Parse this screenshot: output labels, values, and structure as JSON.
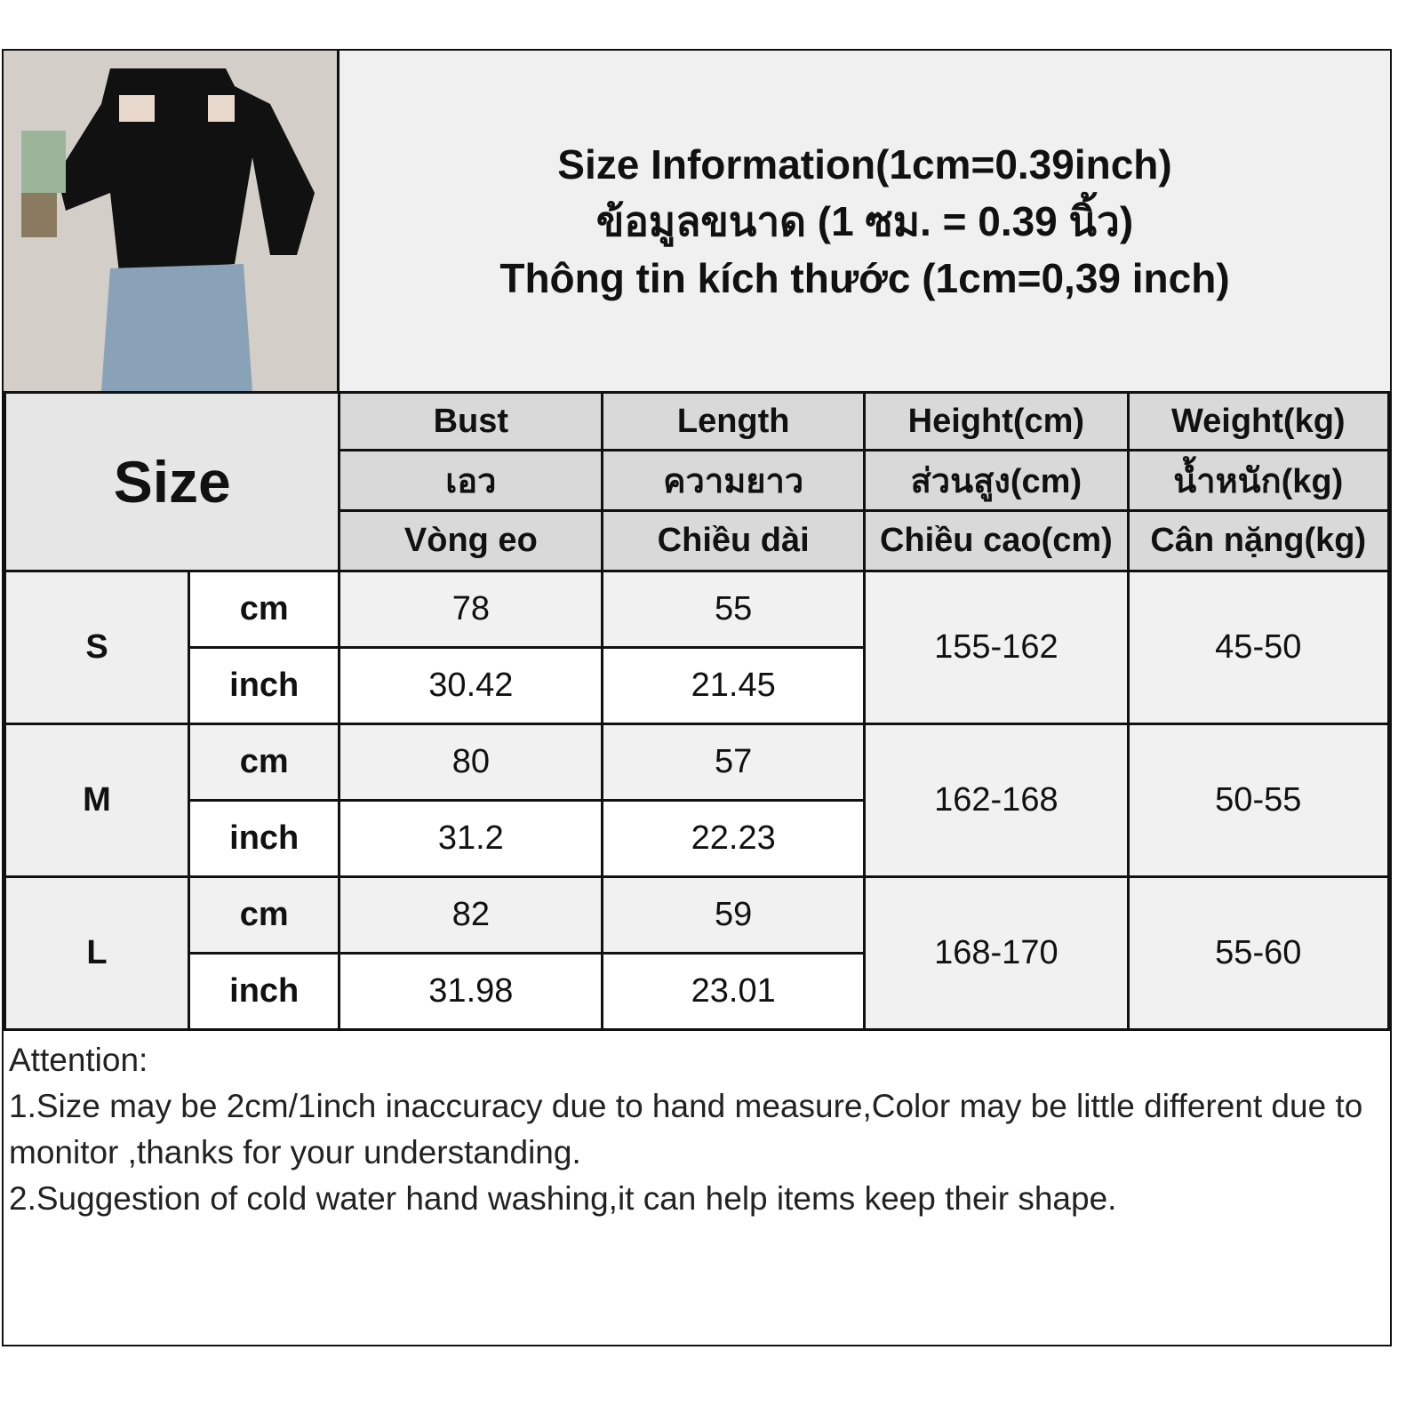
{
  "title_lines": [
    "Size Information(1cm=0.39inch)",
    "ข้อมูลขนาด (1 ซม. = 0.39 นิ้ว)",
    "Thông tin kích thước (1cm=0,39 inch)"
  ],
  "size_header": "Size",
  "columns": [
    {
      "en": "Bust",
      "th": "เอว",
      "vi": "Vòng eo"
    },
    {
      "en": "Length",
      "th": "ความยาว",
      "vi": "Chiều dài"
    },
    {
      "en": "Height(cm)",
      "th": "ส่วนสูง(cm)",
      "vi": "Chiều cao(cm)"
    },
    {
      "en": "Weight(kg)",
      "th": "น้ำหนัก(kg)",
      "vi": "Cân nặng(kg)"
    }
  ],
  "units": {
    "cm": "cm",
    "inch": "inch"
  },
  "rows": [
    {
      "size": "S",
      "cm": [
        "78",
        "55"
      ],
      "inch": [
        "30.42",
        "21.45"
      ],
      "height": "155-162",
      "weight": "45-50"
    },
    {
      "size": "M",
      "cm": [
        "80",
        "57"
      ],
      "inch": [
        "31.2",
        "22.23"
      ],
      "height": "162-168",
      "weight": "50-55"
    },
    {
      "size": "L",
      "cm": [
        "82",
        "59"
      ],
      "inch": [
        "31.98",
        "23.01"
      ],
      "height": "168-170",
      "weight": "55-60"
    }
  ],
  "attention": {
    "heading": "Attention:",
    "notes": [
      "1.Size may be 2cm/1inch inaccuracy due to hand measure,Color may be little different due to monitor ,thanks for your understanding.",
      "2.Suggestion of cold water hand washing,it can help items keep their shape."
    ]
  }
}
